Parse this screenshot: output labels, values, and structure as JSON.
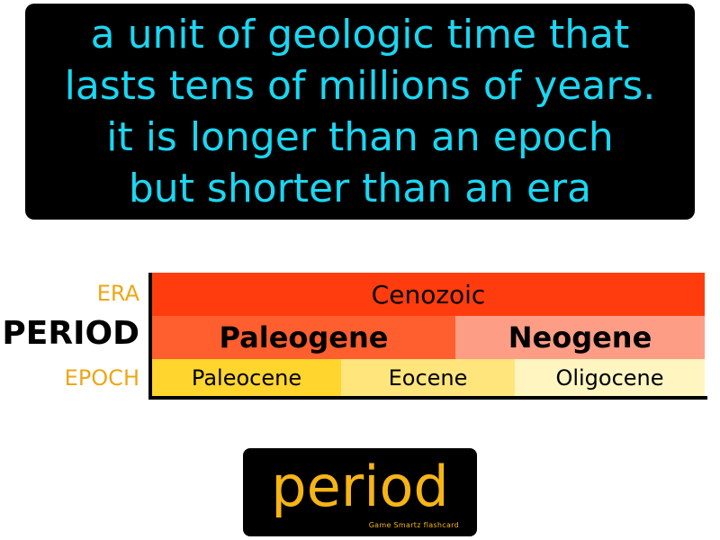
{
  "definition": {
    "lines": [
      "a unit of geologic time that",
      "lasts tens of millions of years.",
      "it is longer than an epoch",
      "but shorter than an era"
    ]
  },
  "diagram": {
    "row_labels": {
      "era": "ERA",
      "period": "PERIOD",
      "epoch": "EPOCH"
    },
    "era": {
      "label": "Cenozoic",
      "color": "#ff3c0d"
    },
    "periods": [
      {
        "label": "Paleogene",
        "color": "#ff5e2e"
      },
      {
        "label": "Neogene",
        "color": "#fe9d86"
      }
    ],
    "epochs": [
      {
        "label": "Paleocene",
        "color": "#ffd52e"
      },
      {
        "label": "Eocene",
        "color": "#ffe57c"
      },
      {
        "label": "Oligocene",
        "color": "#fff5c0"
      }
    ]
  },
  "term": {
    "word": "period",
    "credit": "Game Smartz flashcard",
    "color": "#f6b416"
  },
  "colors": {
    "definition_text": "#1ad7f2",
    "label_accent": "#eea615",
    "background": "#ffffff",
    "panel": "#000000"
  }
}
